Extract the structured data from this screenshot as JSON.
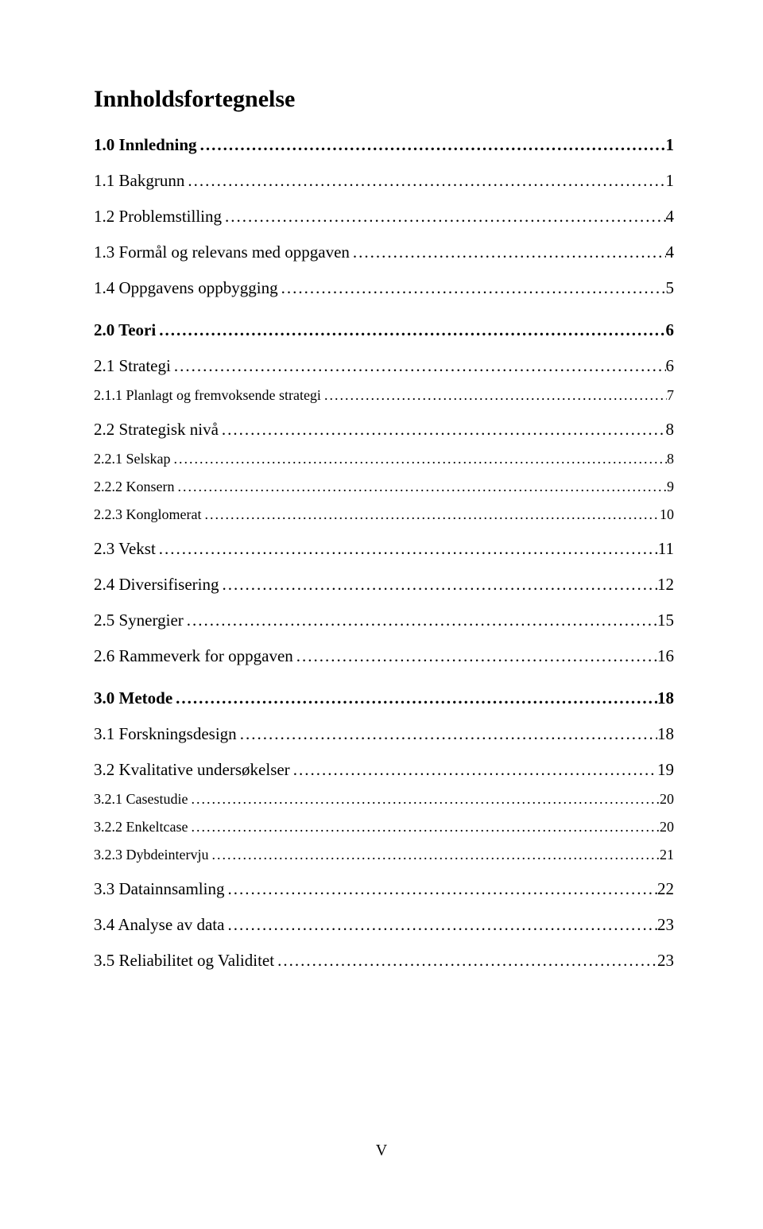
{
  "title": "Innholdsfortegnelse",
  "page_number": "V",
  "leader_char": ".",
  "entries": [
    {
      "level": 1,
      "label": "1.0 Innledning",
      "page": "1"
    },
    {
      "level": 2,
      "label": "1.1 Bakgrunn",
      "page": "1"
    },
    {
      "level": 2,
      "label": "1.2 Problemstilling",
      "page": "4"
    },
    {
      "level": 2,
      "label": "1.3 Formål og relevans med oppgaven",
      "page": "4"
    },
    {
      "level": 2,
      "label": "1.4 Oppgavens oppbygging",
      "page": "5"
    },
    {
      "level": 1,
      "label": "2.0 Teori",
      "page": "6"
    },
    {
      "level": 2,
      "label": "2.1 Strategi",
      "page": "6"
    },
    {
      "level": 3,
      "label": "2.1.1 Planlagt og fremvoksende strategi",
      "page": "7"
    },
    {
      "level": 2,
      "label": "2.2 Strategisk nivå",
      "page": "8"
    },
    {
      "level": 3,
      "label": "2.2.1 Selskap",
      "page": "8"
    },
    {
      "level": 3,
      "label": "2.2.2 Konsern",
      "page": "9"
    },
    {
      "level": 3,
      "label": "2.2.3 Konglomerat",
      "page": "10"
    },
    {
      "level": 2,
      "label": "2.3 Vekst",
      "page": "11"
    },
    {
      "level": 2,
      "label": "2.4 Diversifisering",
      "page": "12"
    },
    {
      "level": 2,
      "label": "2.5 Synergier",
      "page": "15"
    },
    {
      "level": 2,
      "label": "2.6 Rammeverk for oppgaven",
      "page": "16"
    },
    {
      "level": 1,
      "label": "3.0 Metode",
      "page": "18"
    },
    {
      "level": 2,
      "label": "3.1 Forskningsdesign",
      "page": "18"
    },
    {
      "level": 2,
      "label": "3.2 Kvalitative undersøkelser",
      "page": "19"
    },
    {
      "level": 3,
      "label": "3.2.1 Casestudie",
      "page": "20"
    },
    {
      "level": 3,
      "label": "3.2.2 Enkeltcase",
      "page": "20"
    },
    {
      "level": 3,
      "label": "3.2.3 Dybdeintervju",
      "page": "21"
    },
    {
      "level": 2,
      "label": "3.3 Datainnsamling",
      "page": "22"
    },
    {
      "level": 2,
      "label": "3.4 Analyse av data",
      "page": "23"
    },
    {
      "level": 2,
      "label": "3.5 Reliabilitet og Validitet",
      "page": "23"
    }
  ]
}
